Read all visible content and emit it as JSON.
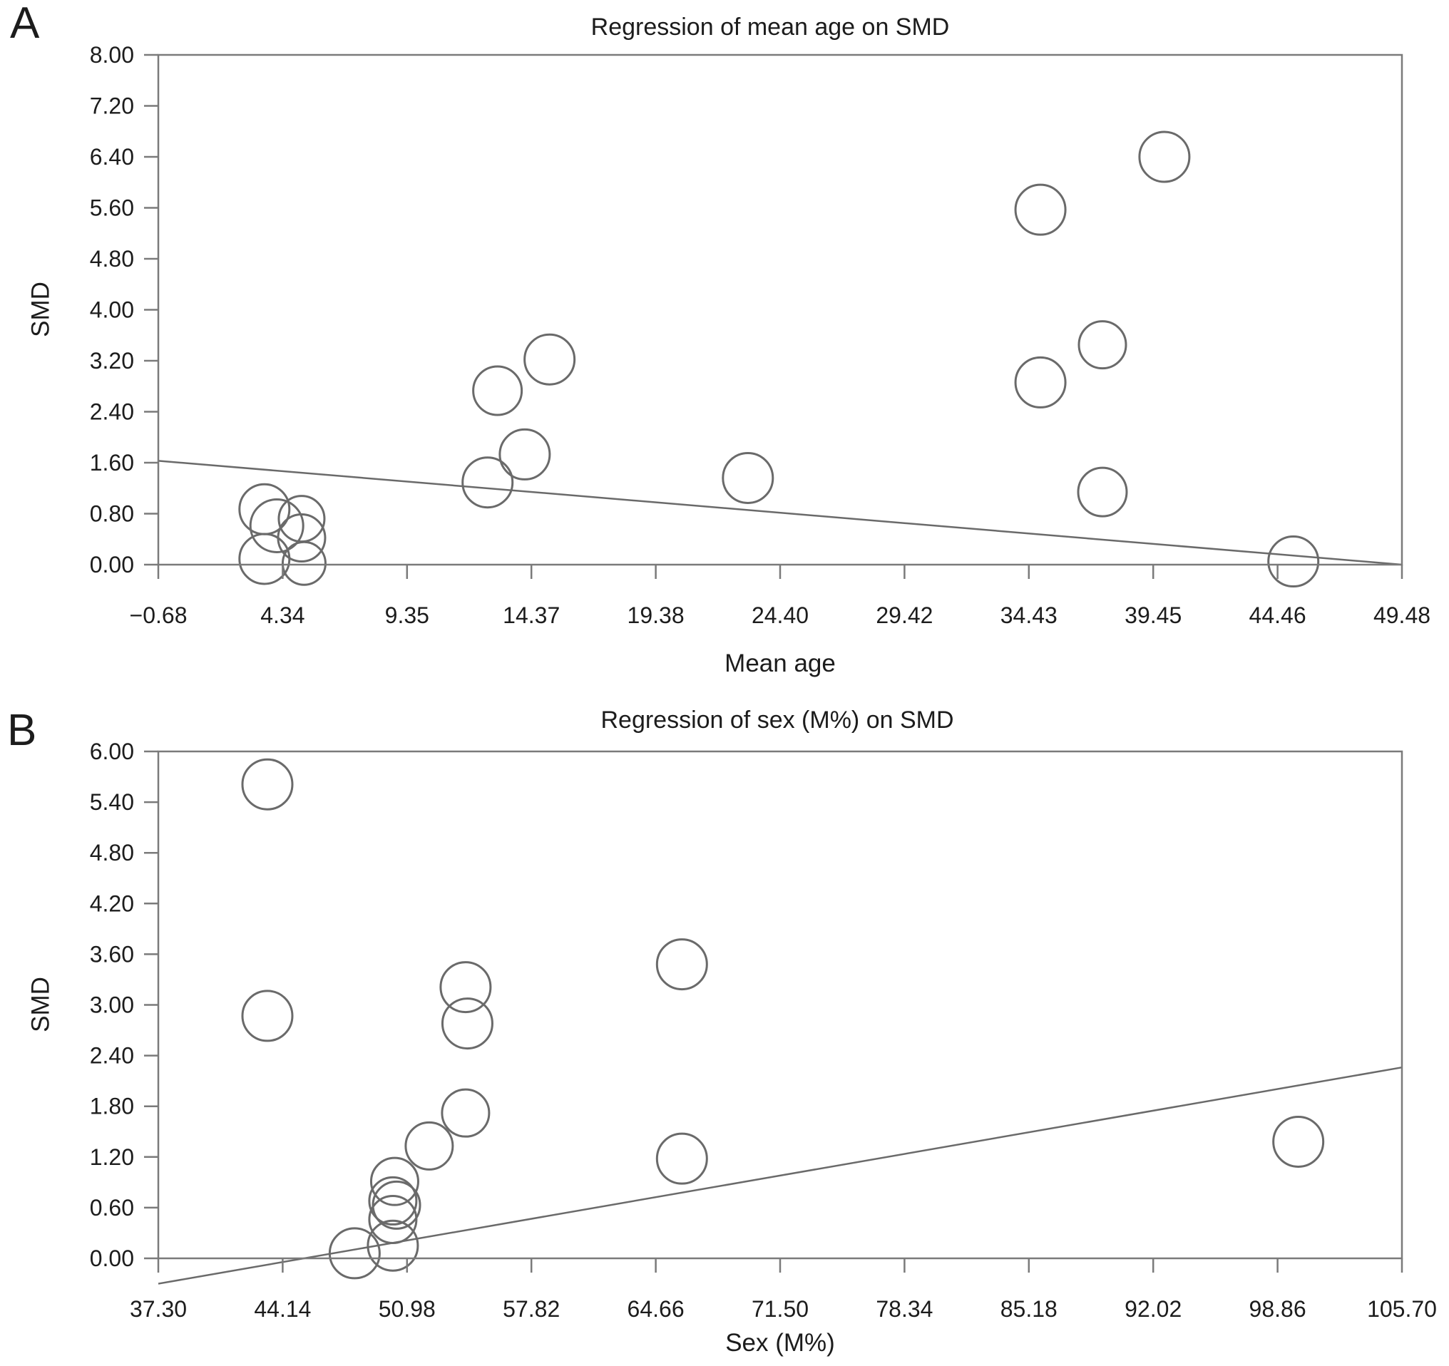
{
  "figure": {
    "background": "#ffffff",
    "colors": {
      "frame": "#7a7a7a",
      "bubble_stroke": "#6a6a6a",
      "regression_line": "#6a6a6a",
      "text": "#1c1c1c"
    }
  },
  "chart_data": [
    {
      "type": "scatter",
      "panel_label": "A",
      "title": "Regression of mean age on SMD",
      "xlabel": "Mean age",
      "ylabel": "SMD",
      "xlim": [
        -0.68,
        49.48
      ],
      "ylim": [
        0,
        8
      ],
      "grid": false,
      "legend": "none",
      "x_ticks": [
        "−0.68",
        "4.34",
        "9.35",
        "14.37",
        "19.38",
        "24.40",
        "29.42",
        "34.43",
        "39.45",
        "44.46",
        "49.48"
      ],
      "y_ticks": [
        "8.00",
        "7.20",
        "6.40",
        "5.60",
        "4.80",
        "4.00",
        "3.20",
        "2.40",
        "1.60",
        "0.80",
        "0.00"
      ],
      "regression_line": {
        "x": [
          -0.68,
          49.48
        ],
        "y": [
          1.63,
          0.0
        ]
      },
      "bubbles": [
        {
          "x": 3.6,
          "y": 0.87,
          "r": 35
        },
        {
          "x": 4.1,
          "y": 0.61,
          "r": 37
        },
        {
          "x": 5.1,
          "y": 0.72,
          "r": 32
        },
        {
          "x": 5.1,
          "y": 0.42,
          "r": 33
        },
        {
          "x": 3.6,
          "y": 0.09,
          "r": 35
        },
        {
          "x": 5.2,
          "y": 0.02,
          "r": 30
        },
        {
          "x": 12.6,
          "y": 1.29,
          "r": 35
        },
        {
          "x": 13.0,
          "y": 2.73,
          "r": 34
        },
        {
          "x": 14.1,
          "y": 1.73,
          "r": 35
        },
        {
          "x": 15.1,
          "y": 3.22,
          "r": 35
        },
        {
          "x": 23.1,
          "y": 1.36,
          "r": 35
        },
        {
          "x": 34.9,
          "y": 5.57,
          "r": 35
        },
        {
          "x": 34.9,
          "y": 2.86,
          "r": 35
        },
        {
          "x": 37.4,
          "y": 3.45,
          "r": 33
        },
        {
          "x": 37.4,
          "y": 1.14,
          "r": 34
        },
        {
          "x": 39.9,
          "y": 6.4,
          "r": 35
        },
        {
          "x": 45.1,
          "y": 0.05,
          "r": 35
        }
      ]
    },
    {
      "type": "scatter",
      "panel_label": "B",
      "title": "Regression of sex (M%) on SMD",
      "xlabel": "Sex (M%)",
      "ylabel": "SMD",
      "xlim": [
        37.3,
        105.7
      ],
      "ylim": [
        0,
        6
      ],
      "grid": false,
      "legend": "none",
      "x_ticks": [
        "37.30",
        "44.14",
        "50.98",
        "57.82",
        "64.66",
        "71.50",
        "78.34",
        "85.18",
        "92.02",
        "98.86",
        "105.70"
      ],
      "y_ticks": [
        "6.00",
        "5.40",
        "4.80",
        "4.20",
        "3.60",
        "3.00",
        "2.40",
        "1.80",
        "1.20",
        "0.60",
        "0.00"
      ],
      "regression_line": {
        "x": [
          37.3,
          105.7
        ],
        "y": [
          -0.3,
          2.26
        ]
      },
      "bubbles": [
        {
          "x": 43.3,
          "y": 5.61,
          "r": 35
        },
        {
          "x": 43.3,
          "y": 2.87,
          "r": 35
        },
        {
          "x": 54.2,
          "y": 3.21,
          "r": 35
        },
        {
          "x": 54.3,
          "y": 2.78,
          "r": 35
        },
        {
          "x": 66.1,
          "y": 3.48,
          "r": 35
        },
        {
          "x": 54.2,
          "y": 1.72,
          "r": 33
        },
        {
          "x": 52.2,
          "y": 1.33,
          "r": 33
        },
        {
          "x": 50.3,
          "y": 0.91,
          "r": 33
        },
        {
          "x": 50.2,
          "y": 0.68,
          "r": 33
        },
        {
          "x": 50.4,
          "y": 0.63,
          "r": 33
        },
        {
          "x": 50.2,
          "y": 0.46,
          "r": 33
        },
        {
          "x": 50.2,
          "y": 0.15,
          "r": 35
        },
        {
          "x": 48.1,
          "y": 0.06,
          "r": 35
        },
        {
          "x": 66.1,
          "y": 1.18,
          "r": 35
        },
        {
          "x": 100.0,
          "y": 1.38,
          "r": 35
        }
      ]
    }
  ]
}
